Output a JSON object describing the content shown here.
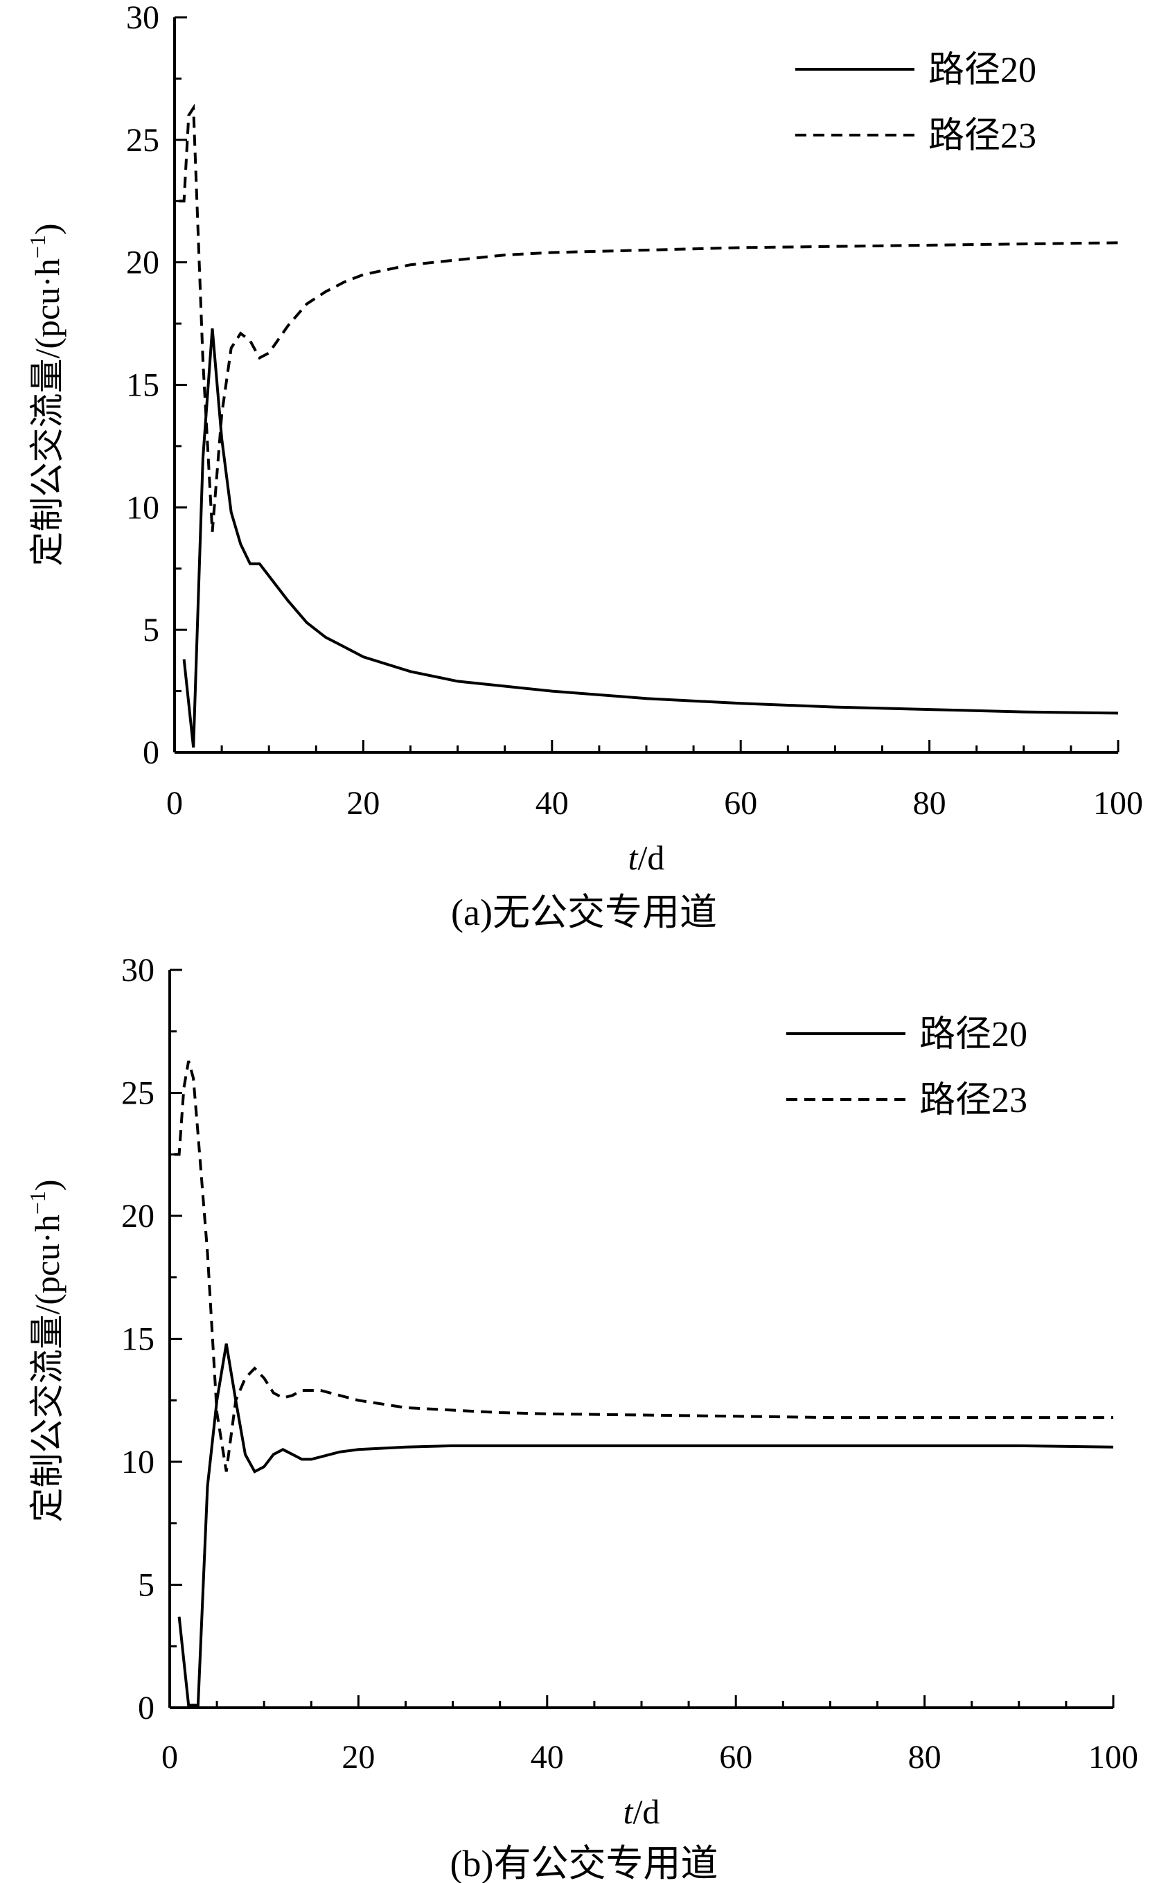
{
  "chart_data": [
    {
      "type": "line",
      "caption": "(a)无公交专用道",
      "xlabel_italic": "t",
      "xlabel_unit": "/d",
      "ylabel_main": "定制公交流量/(pcu·h",
      "ylabel_sup": "−1",
      "ylabel_close": ")",
      "xlim": [
        0,
        100
      ],
      "ylim": [
        0,
        30
      ],
      "xticks": [
        "0",
        "20",
        "40",
        "60",
        "80",
        "100"
      ],
      "yticks": [
        "0",
        "5",
        "10",
        "15",
        "20",
        "25",
        "30"
      ],
      "legend_position": "top-right",
      "series": [
        {
          "name": "路径20",
          "style": "solid",
          "x": [
            1,
            2,
            3,
            4,
            5,
            6,
            7,
            8,
            9,
            10,
            12,
            14,
            16,
            18,
            20,
            25,
            30,
            35,
            40,
            50,
            60,
            70,
            80,
            90,
            100
          ],
          "y": [
            3.8,
            0.2,
            12.0,
            17.3,
            12.8,
            9.8,
            8.5,
            7.7,
            7.7,
            7.2,
            6.2,
            5.3,
            4.7,
            4.3,
            3.9,
            3.3,
            2.9,
            2.7,
            2.5,
            2.2,
            2.0,
            1.85,
            1.75,
            1.65,
            1.6
          ]
        },
        {
          "name": "路径23",
          "style": "dashed",
          "x": [
            0.5,
            1,
            1.5,
            2,
            3,
            4,
            5,
            6,
            7,
            8,
            9,
            10,
            12,
            14,
            16,
            18,
            20,
            25,
            30,
            35,
            40,
            50,
            60,
            70,
            80,
            90,
            100
          ],
          "y": [
            22.5,
            22.5,
            26.0,
            26.3,
            16.0,
            9.0,
            13.8,
            16.5,
            17.1,
            16.8,
            16.1,
            16.3,
            17.4,
            18.3,
            18.8,
            19.2,
            19.5,
            19.9,
            20.1,
            20.3,
            20.4,
            20.5,
            20.6,
            20.65,
            20.7,
            20.75,
            20.8
          ]
        }
      ]
    },
    {
      "type": "line",
      "caption": "(b)有公交专用道",
      "xlabel_italic": "t",
      "xlabel_unit": "/d",
      "ylabel_main": "定制公交流量/(pcu·h",
      "ylabel_sup": "−1",
      "ylabel_close": ")",
      "xlim": [
        0,
        100
      ],
      "ylim": [
        0,
        30
      ],
      "xticks": [
        "0",
        "20",
        "40",
        "60",
        "80",
        "100"
      ],
      "yticks": [
        "0",
        "5",
        "10",
        "15",
        "20",
        "25",
        "30"
      ],
      "legend_position": "top-right",
      "series": [
        {
          "name": "路径20",
          "style": "solid",
          "x": [
            1,
            2,
            3,
            4,
            5,
            6,
            7,
            8,
            9,
            10,
            11,
            12,
            13,
            14,
            15,
            16,
            18,
            20,
            25,
            30,
            40,
            50,
            60,
            70,
            80,
            90,
            100
          ],
          "y": [
            3.7,
            0.1,
            0.1,
            9.0,
            12.5,
            14.8,
            12.5,
            10.3,
            9.6,
            9.8,
            10.3,
            10.5,
            10.3,
            10.1,
            10.1,
            10.2,
            10.4,
            10.5,
            10.6,
            10.65,
            10.65,
            10.65,
            10.65,
            10.65,
            10.65,
            10.65,
            10.6
          ]
        },
        {
          "name": "路径23",
          "style": "dashed",
          "x": [
            0.5,
            1,
            1.5,
            2,
            2.5,
            3,
            4,
            5,
            6,
            7,
            8,
            9,
            10,
            11,
            12,
            13,
            14,
            15,
            16,
            18,
            20,
            25,
            30,
            35,
            40,
            50,
            60,
            70,
            80,
            90,
            100
          ],
          "y": [
            22.5,
            22.5,
            25.2,
            26.3,
            25.6,
            23.3,
            18.5,
            12.0,
            9.6,
            12.5,
            13.4,
            13.8,
            13.4,
            12.8,
            12.6,
            12.7,
            12.9,
            12.9,
            12.9,
            12.7,
            12.5,
            12.2,
            12.1,
            12.0,
            11.95,
            11.9,
            11.85,
            11.8,
            11.8,
            11.8,
            11.8
          ]
        }
      ]
    }
  ]
}
